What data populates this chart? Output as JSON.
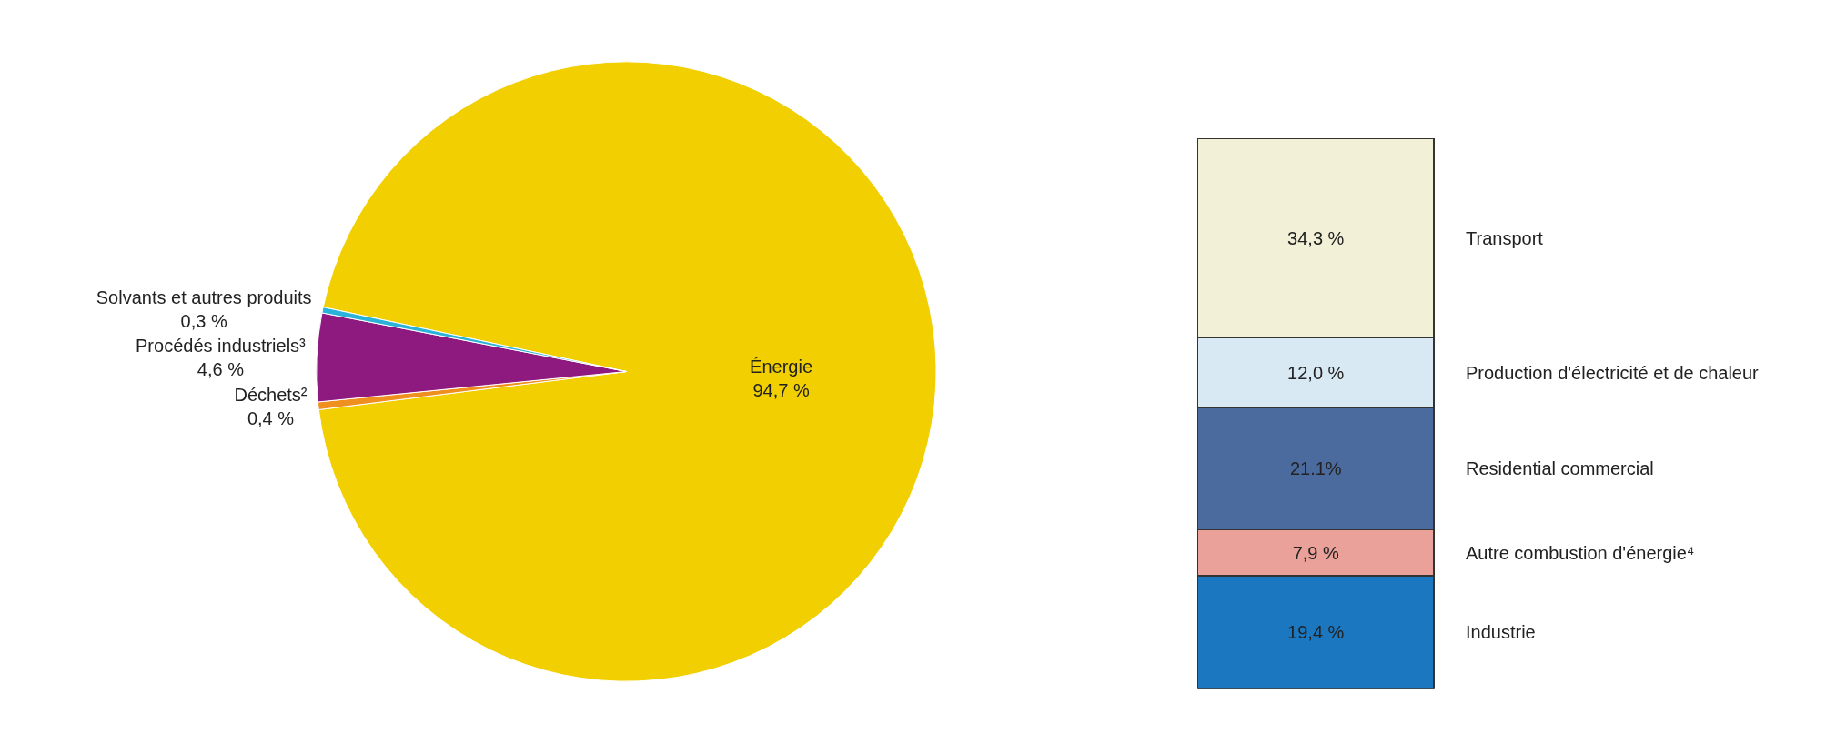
{
  "chart_data": [
    {
      "type": "pie",
      "categories": [
        "Énergie",
        "Déchets²",
        "Procédés industriels³",
        "Solvants et autres produits"
      ],
      "values": [
        94.7,
        0.4,
        4.6,
        0.3
      ],
      "colors": [
        "#f2cf00",
        "#ef8f1f",
        "#8e1a80",
        "#2bb2d9"
      ],
      "value_labels": [
        "94,7 %",
        "0,4 %",
        "4,6 %",
        "0,3 %"
      ]
    },
    {
      "type": "bar",
      "stacked": true,
      "categories": [
        null
      ],
      "series": [
        {
          "name": "Industrie",
          "color": "#1b78c0",
          "values": [
            19.4
          ],
          "value_labels": [
            "19,4 %"
          ]
        },
        {
          "name": "Autre combustion d'énergie⁴",
          "color": "#e9a19a",
          "values": [
            7.9
          ],
          "value_labels": [
            "7,9 %"
          ]
        },
        {
          "name": "Residential commercial",
          "color": "#4b6a9e",
          "values": [
            21.1
          ],
          "value_labels": [
            "21.1%"
          ]
        },
        {
          "name": "Production d'électricité et de chaleur",
          "color": "#d9e9f3",
          "values": [
            12.0
          ],
          "value_labels": [
            "12,0 %"
          ]
        },
        {
          "name": "Transport",
          "color": "#f3f0d8",
          "values": [
            34.3
          ],
          "value_labels": [
            "34,3 %"
          ]
        }
      ]
    }
  ]
}
